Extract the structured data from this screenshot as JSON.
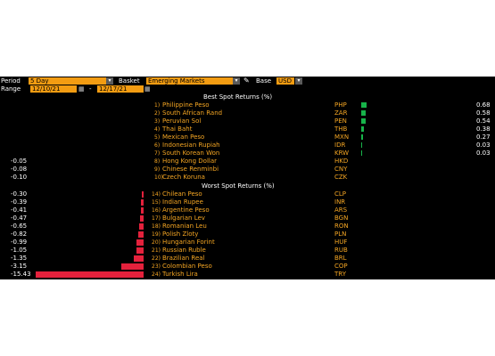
{
  "toolbar": {
    "period_label": "Period",
    "period_value": "5 Day",
    "basket_label": "Basket",
    "basket_value": "Emerging Markets",
    "pencil_icon": "pencil-icon",
    "base_label": "Base",
    "base_value": "USD",
    "range_label": "Range",
    "range_start": "12/10/21",
    "range_sep": "-",
    "range_end": "12/17/21"
  },
  "best": {
    "header": "Best Spot Returns (%)",
    "rows": [
      {
        "rank": "1)",
        "name": "Philippine Peso",
        "code": "PHP",
        "value": 0.68
      },
      {
        "rank": "2)",
        "name": "South African Rand",
        "code": "ZAR",
        "value": 0.58
      },
      {
        "rank": "3)",
        "name": "Peruvian Sol",
        "code": "PEN",
        "value": 0.54
      },
      {
        "rank": "4)",
        "name": "Thai Baht",
        "code": "THB",
        "value": 0.38
      },
      {
        "rank": "5)",
        "name": "Mexican Peso",
        "code": "MXN",
        "value": 0.27
      },
      {
        "rank": "6)",
        "name": "Indonesian Rupiah",
        "code": "IDR",
        "value": 0.03
      },
      {
        "rank": "7)",
        "name": "South Korean Won",
        "code": "KRW",
        "value": 0.03
      },
      {
        "rank": "8)",
        "name": "Hong Kong Dollar",
        "code": "HKD",
        "value": -0.05
      },
      {
        "rank": "9)",
        "name": "Chinese Renminbi",
        "code": "CNY",
        "value": -0.08
      },
      {
        "rank": "10)",
        "name": "Czech Koruna",
        "code": "CZK",
        "value": -0.1
      }
    ]
  },
  "worst": {
    "header": "Worst Spot Returns (%)",
    "rows": [
      {
        "rank": "14)",
        "name": "Chilean Peso",
        "code": "CLP",
        "value": -0.3
      },
      {
        "rank": "15)",
        "name": "Indian Rupee",
        "code": "INR",
        "value": -0.39
      },
      {
        "rank": "16)",
        "name": "Argentine Peso",
        "code": "ARS",
        "value": -0.41
      },
      {
        "rank": "17)",
        "name": "Bulgarian Lev",
        "code": "BGN",
        "value": -0.47
      },
      {
        "rank": "18)",
        "name": "Romanian Leu",
        "code": "RON",
        "value": -0.65
      },
      {
        "rank": "19)",
        "name": "Polish Zloty",
        "code": "PLN",
        "value": -0.82
      },
      {
        "rank": "20)",
        "name": "Hungarian Forint",
        "code": "HUF",
        "value": -0.99
      },
      {
        "rank": "21)",
        "name": "Russian Ruble",
        "code": "RUB",
        "value": -1.05
      },
      {
        "rank": "22)",
        "name": "Brazilian Real",
        "code": "BRL",
        "value": -1.35
      },
      {
        "rank": "23)",
        "name": "Colombian Peso",
        "code": "COP",
        "value": -3.15
      },
      {
        "rank": "24)",
        "name": "Turkish Lira",
        "code": "TRY",
        "value": -15.43
      }
    ]
  },
  "colors": {
    "positive": "#17b34a",
    "negative": "#e4213c",
    "label": "#f5a623",
    "background": "#000000"
  }
}
